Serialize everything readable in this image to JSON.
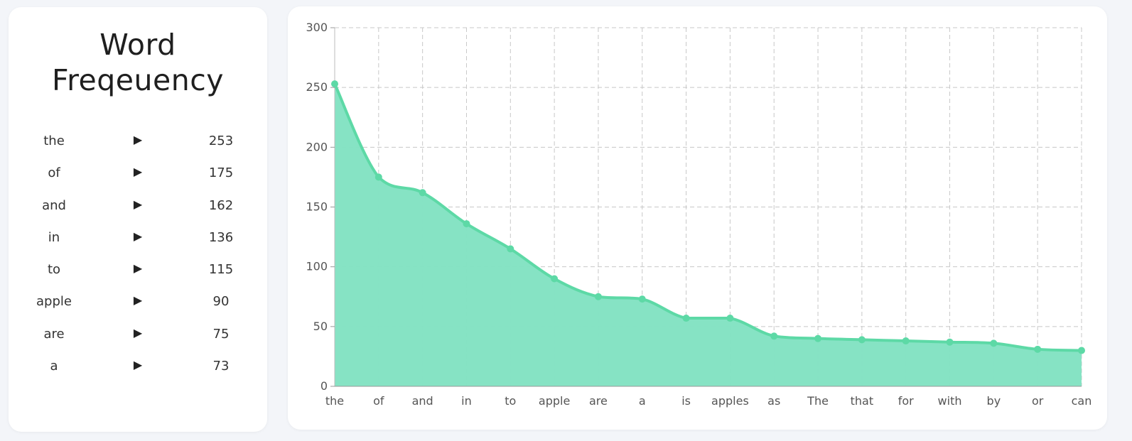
{
  "panel": {
    "title_line1": "Word",
    "title_line2": "Freqeuency",
    "arrow": "▶",
    "items": [
      {
        "word": "the",
        "count": "253"
      },
      {
        "word": "of",
        "count": "175"
      },
      {
        "word": "and",
        "count": "162"
      },
      {
        "word": "in",
        "count": "136"
      },
      {
        "word": "to",
        "count": "115"
      },
      {
        "word": "apple",
        "count": "90"
      },
      {
        "word": "are",
        "count": "75"
      },
      {
        "word": "a",
        "count": "73"
      }
    ]
  },
  "colors": {
    "fill": "#84e2c3",
    "line": "#5dd9a6",
    "grid": "#c8c8c8"
  },
  "chart_data": {
    "type": "area",
    "categories": [
      "the",
      "of",
      "and",
      "in",
      "to",
      "apple",
      "are",
      "a",
      "is",
      "apples",
      "as",
      "The",
      "that",
      "for",
      "with",
      "by",
      "or",
      "can"
    ],
    "values": [
      253,
      175,
      162,
      136,
      115,
      90,
      75,
      73,
      57,
      57,
      42,
      40,
      39,
      38,
      37,
      36,
      31,
      30
    ],
    "ylim": [
      0,
      300
    ],
    "yticks": [
      0,
      50,
      100,
      150,
      200,
      250,
      300
    ],
    "grid": true
  }
}
